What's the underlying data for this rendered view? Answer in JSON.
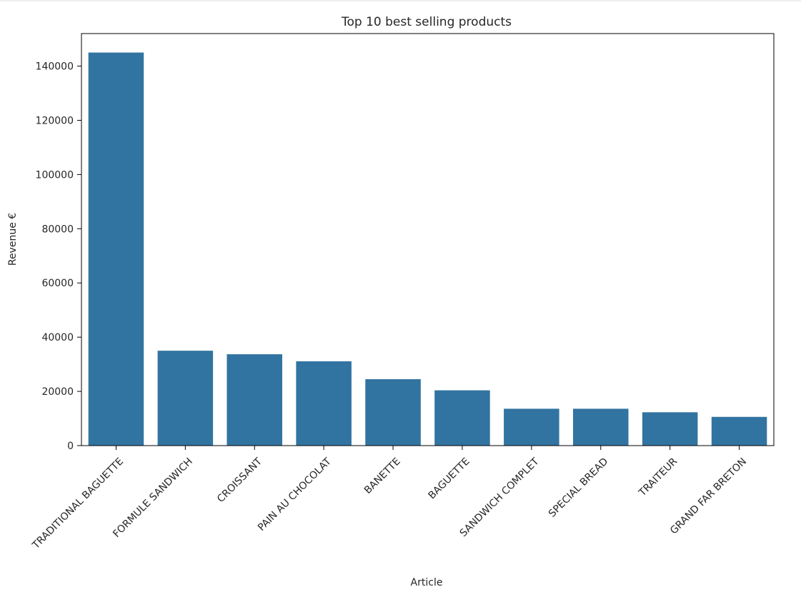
{
  "chart_data": {
    "type": "bar",
    "title": "Top 10 best selling products",
    "xlabel": "Article",
    "ylabel": "Revenue €",
    "categories": [
      "TRADITIONAL BAGUETTE",
      "FORMULE SANDWICH",
      "CROISSANT",
      "PAIN AU CHOCOLAT",
      "BANETTE",
      "BAGUETTE",
      "SANDWICH COMPLET",
      "SPECIAL BREAD",
      "TRAITEUR",
      "GRAND FAR BRETON"
    ],
    "values": [
      145000,
      35000,
      33700,
      31100,
      24500,
      20400,
      13600,
      13600,
      12300,
      10600
    ],
    "ylim": [
      0,
      152000
    ],
    "yticks": [
      0,
      20000,
      40000,
      60000,
      80000,
      100000,
      120000,
      140000
    ],
    "ytick_labels": [
      "0",
      "20000",
      "40000",
      "60000",
      "80000",
      "100000",
      "120000",
      "140000"
    ],
    "grid": false,
    "bar_color": "#3274a1"
  }
}
